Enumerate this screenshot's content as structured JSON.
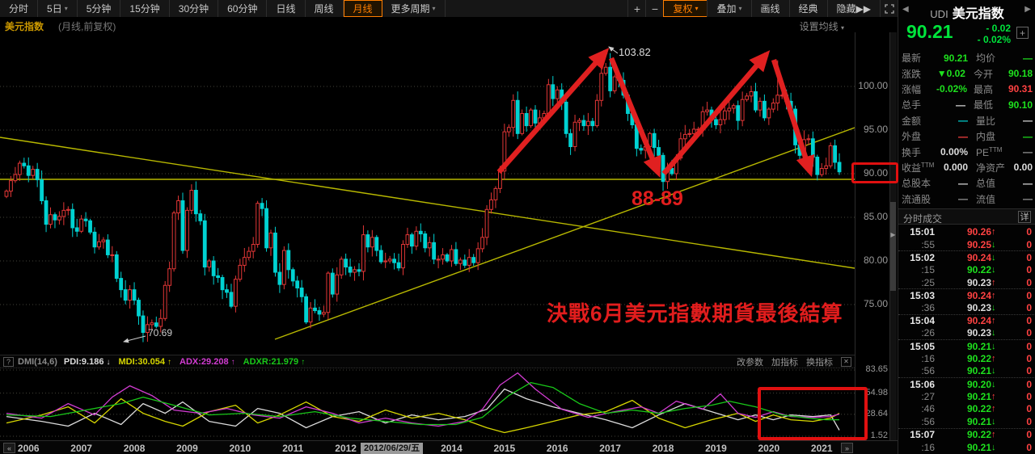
{
  "toolbar": {
    "periods": [
      {
        "label": "分时"
      },
      {
        "label": "5日",
        "dropdown": true
      },
      {
        "label": "5分钟"
      },
      {
        "label": "15分钟"
      },
      {
        "label": "30分钟"
      },
      {
        "label": "60分钟"
      },
      {
        "label": "日线"
      },
      {
        "label": "周线"
      },
      {
        "label": "月线",
        "active": true
      },
      {
        "label": "更多周期",
        "dropdown": true
      }
    ],
    "zoom_in": "+",
    "zoom_out": "−",
    "right_buttons": [
      {
        "label": "复权",
        "dropdown": true,
        "accent": true
      },
      {
        "label": "叠加",
        "dropdown": true
      },
      {
        "label": "画线"
      },
      {
        "label": "经典"
      },
      {
        "label": "隐藏▶▶"
      }
    ]
  },
  "chart_header": {
    "title": "美元指数",
    "subtitle": "(月线,前复权)",
    "ma_settings": "设置均线",
    "caret": "▾"
  },
  "annotations": {
    "peak_label": "103.82",
    "low_label": "70.69",
    "support_label": "88-89",
    "banner": "決戰6月美元指數期貨最後結算",
    "date_chip": "2012/06/29/五"
  },
  "x_axis": {
    "back": "«",
    "forward": "»",
    "years": [
      "2006",
      "2007",
      "2008",
      "2009",
      "2010",
      "2011",
      "2012",
      "2013",
      "2014",
      "2015",
      "2016",
      "2017",
      "2018",
      "2019",
      "2020",
      "2021"
    ]
  },
  "chart_data": {
    "type": "candlestick",
    "title": "美元指数 月线(前复权)",
    "x_start": "2005-08",
    "x_end": "2021-05",
    "y_axis_labels": [
      "100.00",
      "95.00",
      "90.00",
      "85.00",
      "80.00",
      "75.00"
    ],
    "y_axis_values": [
      100,
      95,
      90,
      85,
      80,
      75
    ],
    "highlighted_level": "90.00",
    "monthly_close": [
      88.0,
      89.2,
      89.9,
      91.2,
      90.9,
      89.8,
      90.5,
      89.3,
      86.9,
      84.2,
      85.3,
      84.7,
      85.1,
      85.8,
      85.9,
      83.8,
      83.4,
      84.8,
      84.6,
      83.3,
      81.6,
      82.2,
      82.4,
      80.7,
      80.7,
      78.0,
      76.7,
      75.5,
      76.7,
      75.5,
      73.7,
      71.8,
      72.7,
      72.9,
      72.5,
      73.4,
      77.2,
      79.1,
      85.5,
      86.9,
      81.2,
      85.8,
      88.1,
      85.4,
      84.6,
      79.3,
      80.0,
      78.3,
      78.1,
      76.7,
      76.4,
      74.8,
      77.9,
      79.5,
      80.4,
      81.1,
      81.9,
      86.6,
      86.0,
      81.5,
      83.2,
      78.7,
      77.3,
      81.2,
      79.0,
      77.7,
      76.9,
      75.9,
      73.0,
      74.6,
      74.3,
      73.9,
      74.1,
      78.6,
      76.2,
      78.4,
      80.2,
      79.3,
      78.7,
      79.0,
      78.8,
      83.0,
      81.6,
      82.7,
      81.2,
      79.9,
      80.0,
      80.2,
      79.8,
      79.2,
      81.9,
      83.0,
      81.7,
      83.4,
      83.1,
      81.5,
      82.1,
      80.2,
      80.2,
      80.7,
      80.0,
      81.3,
      79.7,
      80.1,
      79.5,
      80.4,
      79.8,
      81.4,
      82.7,
      85.9,
      87.0,
      88.3,
      90.3,
      94.8,
      95.3,
      98.4,
      94.6,
      96.9,
      95.5,
      97.3,
      95.8,
      96.4,
      96.9,
      100.2,
      98.6,
      99.6,
      98.2,
      94.6,
      93.1,
      95.9,
      96.1,
      95.5,
      96.0,
      95.5,
      98.4,
      101.5,
      102.2,
      99.5,
      101.1,
      100.7,
      99.0,
      96.9,
      95.6,
      92.9,
      92.7,
      93.1,
      94.6,
      93.0,
      92.1,
      89.1,
      90.6,
      90.0,
      91.8,
      94.0,
      94.5,
      94.6,
      95.1,
      95.1,
      97.1,
      97.3,
      96.2,
      95.6,
      96.2,
      97.2,
      97.5,
      97.8,
      96.1,
      98.5,
      98.9,
      99.4,
      97.3,
      98.3,
      96.4,
      97.4,
      98.1,
      99.0,
      99.0,
      98.3,
      97.4,
      93.3,
      92.1,
      93.9,
      94.0,
      91.9,
      89.9,
      90.6,
      90.9,
      93.2,
      91.3,
      90.21
    ],
    "extremes": {
      "low_2008_03": 70.69,
      "high_2017_01": 103.82,
      "low_2018_02": 88.25,
      "high_2020_03": 102.99
    },
    "trendlines": [
      {
        "name": "horizontal-support-90",
        "from": [
          0,
          222
        ],
        "to": [
          1057,
          222
        ]
      },
      {
        "name": "falling-trendline",
        "from": [
          0,
          170
        ],
        "to": [
          1057,
          332
        ]
      },
      {
        "name": "rising-trendline",
        "from": [
          340,
          420
        ],
        "to": [
          1057,
          158
        ]
      }
    ],
    "drawn_arrows": [
      {
        "dir": "up",
        "from": [
          617,
          213
        ],
        "to": [
          749,
          64
        ]
      },
      {
        "dir": "down",
        "from": [
          756,
          72
        ],
        "to": [
          814,
          214
        ]
      },
      {
        "dir": "up",
        "from": [
          821,
          215
        ],
        "to": [
          948,
          67
        ]
      },
      {
        "dir": "down",
        "from": [
          957,
          74
        ],
        "to": [
          1002,
          213
        ]
      }
    ],
    "dmi": {
      "param_label": "DMI(14,6)",
      "values": [
        {
          "text": "PDI:9.186",
          "arrow": "↓",
          "color": "#dcdcdc"
        },
        {
          "text": "MDI:30.054",
          "arrow": "↑",
          "color": "#d6d600"
        },
        {
          "text": "ADX:29.208",
          "arrow": "↑",
          "color": "#d23cd2"
        },
        {
          "text": "ADXR:21.979",
          "arrow": "↑",
          "color": "#19c819"
        }
      ],
      "tools": [
        "改参数",
        "加指标",
        "换指标"
      ],
      "help_icon": "?",
      "close_icon": "✕",
      "axis_labels": [
        "83.65",
        "54.98",
        "28.64",
        "1.52"
      ],
      "axis_values": [
        83.65,
        54.98,
        28.64,
        1.52
      ],
      "series": {
        "pdi": {
          "color": "#dcdcdc",
          "points": [
            [
              0,
              26
            ],
            [
              8,
              20
            ],
            [
              14,
              14
            ],
            [
              20,
              30
            ],
            [
              26,
              16
            ],
            [
              31,
              42
            ],
            [
              36,
              30
            ],
            [
              40,
              44
            ],
            [
              46,
              20
            ],
            [
              52,
              14
            ],
            [
              57,
              36
            ],
            [
              62,
              30
            ],
            [
              68,
              12
            ],
            [
              74,
              26
            ],
            [
              80,
              32
            ],
            [
              86,
              18
            ],
            [
              92,
              28
            ],
            [
              98,
              22
            ],
            [
              104,
              26
            ],
            [
              109,
              35
            ],
            [
              113,
              60
            ],
            [
              118,
              48
            ],
            [
              124,
              38
            ],
            [
              130,
              30
            ],
            [
              136,
              22
            ],
            [
              142,
              12
            ],
            [
              148,
              28
            ],
            [
              154,
              42
            ],
            [
              160,
              32
            ],
            [
              166,
              22
            ],
            [
              170,
              28
            ],
            [
              174,
              22
            ],
            [
              178,
              28
            ],
            [
              183,
              26
            ],
            [
              187,
              28
            ],
            [
              189,
              9
            ]
          ]
        },
        "mdi": {
          "color": "#d6d600",
          "points": [
            [
              0,
              18
            ],
            [
              8,
              28
            ],
            [
              14,
              38
            ],
            [
              20,
              18
            ],
            [
              26,
              48
            ],
            [
              31,
              30
            ],
            [
              36,
              20
            ],
            [
              40,
              14
            ],
            [
              46,
              32
            ],
            [
              52,
              40
            ],
            [
              57,
              18
            ],
            [
              62,
              28
            ],
            [
              68,
              44
            ],
            [
              74,
              26
            ],
            [
              80,
              20
            ],
            [
              86,
              34
            ],
            [
              92,
              24
            ],
            [
              98,
              30
            ],
            [
              104,
              22
            ],
            [
              109,
              12
            ],
            [
              113,
              6
            ],
            [
              118,
              12
            ],
            [
              124,
              20
            ],
            [
              130,
              28
            ],
            [
              136,
              32
            ],
            [
              142,
              46
            ],
            [
              148,
              24
            ],
            [
              154,
              12
            ],
            [
              160,
              22
            ],
            [
              166,
              30
            ],
            [
              170,
              20
            ],
            [
              174,
              28
            ],
            [
              178,
              22
            ],
            [
              183,
              20
            ],
            [
              187,
              24
            ],
            [
              189,
              30
            ]
          ]
        },
        "adx": {
          "color": "#d23cd2",
          "points": [
            [
              0,
              30
            ],
            [
              8,
              24
            ],
            [
              14,
              42
            ],
            [
              20,
              28
            ],
            [
              24,
              50
            ],
            [
              28,
              64
            ],
            [
              33,
              52
            ],
            [
              38,
              34
            ],
            [
              44,
              30
            ],
            [
              50,
              36
            ],
            [
              56,
              28
            ],
            [
              62,
              24
            ],
            [
              68,
              38
            ],
            [
              74,
              30
            ],
            [
              80,
              18
            ],
            [
              86,
              24
            ],
            [
              92,
              18
            ],
            [
              98,
              14
            ],
            [
              104,
              20
            ],
            [
              108,
              35
            ],
            [
              112,
              65
            ],
            [
              116,
              80
            ],
            [
              120,
              60
            ],
            [
              126,
              35
            ],
            [
              132,
              25
            ],
            [
              138,
              32
            ],
            [
              144,
              38
            ],
            [
              148,
              30
            ],
            [
              152,
              45
            ],
            [
              158,
              35
            ],
            [
              162,
              54
            ],
            [
              166,
              30
            ],
            [
              170,
              25
            ],
            [
              174,
              32
            ],
            [
              178,
              26
            ],
            [
              183,
              25
            ],
            [
              187,
              26
            ],
            [
              189,
              29
            ]
          ]
        },
        "adxr": {
          "color": "#19c819",
          "points": [
            [
              0,
              28
            ],
            [
              10,
              26
            ],
            [
              18,
              34
            ],
            [
              26,
              42
            ],
            [
              31,
              50
            ],
            [
              38,
              40
            ],
            [
              46,
              28
            ],
            [
              54,
              30
            ],
            [
              62,
              26
            ],
            [
              70,
              32
            ],
            [
              78,
              24
            ],
            [
              86,
              20
            ],
            [
              94,
              16
            ],
            [
              102,
              16
            ],
            [
              108,
              25
            ],
            [
              114,
              52
            ],
            [
              119,
              68
            ],
            [
              124,
              62
            ],
            [
              130,
              42
            ],
            [
              136,
              30
            ],
            [
              142,
              34
            ],
            [
              148,
              30
            ],
            [
              154,
              36
            ],
            [
              160,
              40
            ],
            [
              164,
              45
            ],
            [
              170,
              38
            ],
            [
              176,
              28
            ],
            [
              182,
              24
            ],
            [
              186,
              22
            ],
            [
              189,
              22
            ]
          ]
        }
      }
    }
  },
  "quote_panel": {
    "nav_left": "◀",
    "nav_right": "▶",
    "code": "UDI",
    "name": "美元指数",
    "price": "90.21",
    "change": "- 0.02",
    "change_pct": "- 0.02%",
    "add_button": "+",
    "fields": [
      {
        "l1": "最新",
        "v1": "90.21",
        "c1": "green",
        "l2": "均价",
        "v2": "—",
        "c2": "green"
      },
      {
        "l1": "涨跌",
        "v1": "▼0.02",
        "c1": "green",
        "l2": "今开",
        "v2": "90.18",
        "c2": "green"
      },
      {
        "l1": "涨幅",
        "v1": "-0.02%",
        "c1": "green",
        "l2": "最高",
        "v2": "90.31",
        "c2": "red"
      },
      {
        "l1": "总手",
        "v1": "—",
        "c1": "white",
        "l2": "最低",
        "v2": "90.10",
        "c2": "green"
      },
      {
        "l1": "金额",
        "v1": "—",
        "c1": "cyan",
        "l2": "量比",
        "v2": "—",
        "c2": "white"
      },
      {
        "l1": "外盘",
        "v1": "—",
        "c1": "red",
        "l2": "内盘",
        "v2": "—",
        "c2": "green"
      },
      {
        "l1": "换手",
        "v1": "0.00%",
        "c1": "white",
        "l2": "PE",
        "sup2": "TTM",
        "v2": "—",
        "c2": "gray"
      },
      {
        "l1": "收益",
        "sup1": "TTM",
        "v1": "0.000",
        "c1": "white",
        "l2": "净资产",
        "v2": "0.00",
        "c2": "white"
      },
      {
        "l1": "总股本",
        "v1": "—",
        "c1": "white",
        "l2": "总值",
        "v2": "—",
        "c2": "white"
      },
      {
        "l1": "流通股",
        "v1": "—",
        "c1": "gray",
        "l2": "流值",
        "v2": "—",
        "c2": "gray"
      }
    ]
  },
  "tape": {
    "title": "分时成交",
    "detail_button": "详",
    "volume": "0",
    "rows": [
      {
        "t": "15:01",
        "bold": true,
        "p": "90.26",
        "pc": "red",
        "a": "up"
      },
      {
        "t": ":55",
        "p": "90.25",
        "pc": "red",
        "a": "down"
      },
      {
        "t": "15:02",
        "bold": true,
        "p": "90.24",
        "pc": "red",
        "a": "down"
      },
      {
        "t": ":15",
        "p": "90.22",
        "pc": "green",
        "a": "down"
      },
      {
        "t": ":25",
        "p": "90.23",
        "pc": "white",
        "a": "up"
      },
      {
        "t": "15:03",
        "bold": true,
        "p": "90.24",
        "pc": "red",
        "a": "up"
      },
      {
        "t": ":36",
        "p": "90.23",
        "pc": "white",
        "a": "down"
      },
      {
        "t": "15:04",
        "bold": true,
        "p": "90.24",
        "pc": "red",
        "a": "up"
      },
      {
        "t": ":26",
        "p": "90.23",
        "pc": "white",
        "a": "down"
      },
      {
        "t": "15:05",
        "bold": true,
        "p": "90.21",
        "pc": "green",
        "a": "down"
      },
      {
        "t": ":16",
        "p": "90.22",
        "pc": "green",
        "a": "up"
      },
      {
        "t": ":56",
        "p": "90.21",
        "pc": "green",
        "a": "down"
      },
      {
        "t": "15:06",
        "bold": true,
        "p": "90.20",
        "pc": "green",
        "a": "down"
      },
      {
        "t": ":27",
        "p": "90.21",
        "pc": "green",
        "a": "up"
      },
      {
        "t": ":46",
        "p": "90.22",
        "pc": "green",
        "a": "up"
      },
      {
        "t": ":56",
        "p": "90.21",
        "pc": "green",
        "a": "down"
      },
      {
        "t": "15:07",
        "bold": true,
        "p": "90.22",
        "pc": "green",
        "a": "up"
      },
      {
        "t": ":16",
        "p": "90.21",
        "pc": "green",
        "a": "down"
      }
    ]
  },
  "colors": {
    "up_candle": "#e23636",
    "down_candle": "#00d2d2",
    "trendline_yellow": "#b8b800",
    "drawn_arrow_red": "#e02020",
    "accent_orange": "#ff7e00",
    "green": "#1ee11e",
    "red": "#ff4242",
    "price_green": "#00e53c",
    "grid": "#45453a"
  }
}
